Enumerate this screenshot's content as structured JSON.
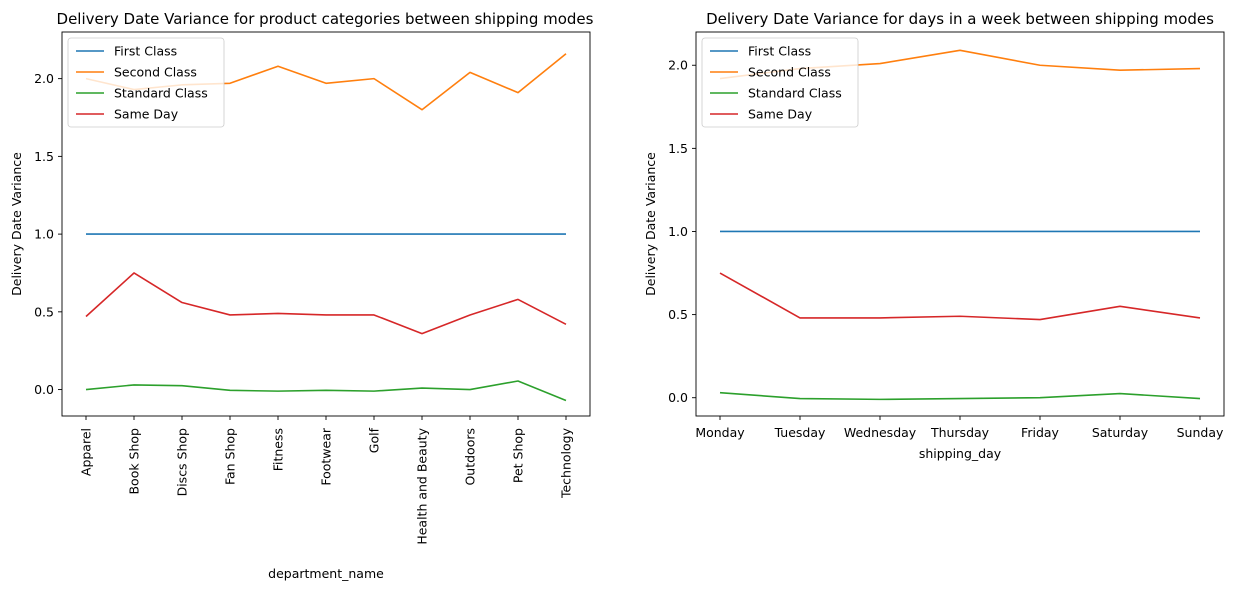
{
  "chart_data": [
    {
      "type": "line",
      "title": "Delivery Date Variance for product categories between shipping modes",
      "xlabel": "department_name",
      "ylabel": "Delivery Date Variance",
      "categories": [
        "Apparel",
        "Book Shop",
        "Discs Shop",
        "Fan Shop",
        "Fitness",
        "Footwear",
        "Golf",
        "Health and Beauty",
        "Outdoors",
        "Pet Shop",
        "Technology"
      ],
      "yticks": [
        "0.0",
        "0.5",
        "1.0",
        "1.5",
        "2.0"
      ],
      "ylim": [
        -0.17,
        2.3
      ],
      "grid": false,
      "legend_position": "upper-left",
      "series": [
        {
          "name": "First Class",
          "color": "#1f77b4",
          "values": [
            1.0,
            1.0,
            1.0,
            1.0,
            1.0,
            1.0,
            1.0,
            1.0,
            1.0,
            1.0,
            1.0
          ]
        },
        {
          "name": "Second Class",
          "color": "#ff7f0e",
          "values": [
            2.0,
            1.93,
            1.96,
            1.97,
            2.08,
            1.97,
            2.0,
            1.8,
            2.04,
            1.91,
            2.16
          ]
        },
        {
          "name": "Standard Class",
          "color": "#2ca02c",
          "values": [
            0.0,
            0.03,
            0.025,
            -0.005,
            -0.01,
            -0.005,
            -0.01,
            0.01,
            0.0,
            0.055,
            -0.07
          ]
        },
        {
          "name": "Same Day",
          "color": "#d62728",
          "values": [
            0.47,
            0.75,
            0.56,
            0.48,
            0.49,
            0.48,
            0.48,
            0.36,
            0.48,
            0.58,
            0.42
          ]
        }
      ]
    },
    {
      "type": "line",
      "title": "Delivery Date Variance for days in a week between shipping modes",
      "xlabel": "shipping_day",
      "ylabel": "Delivery Date Variance",
      "categories": [
        "Monday",
        "Tuesday",
        "Wednesday",
        "Thursday",
        "Friday",
        "Saturday",
        "Sunday"
      ],
      "yticks": [
        "0.0",
        "0.5",
        "1.0",
        "1.5",
        "2.0"
      ],
      "ylim": [
        -0.11,
        2.2
      ],
      "grid": false,
      "legend_position": "upper-left",
      "series": [
        {
          "name": "First Class",
          "color": "#1f77b4",
          "values": [
            1.0,
            1.0,
            1.0,
            1.0,
            1.0,
            1.0,
            1.0
          ]
        },
        {
          "name": "Second Class",
          "color": "#ff7f0e",
          "values": [
            1.92,
            1.98,
            2.01,
            2.09,
            2.0,
            1.97,
            1.98
          ]
        },
        {
          "name": "Standard Class",
          "color": "#2ca02c",
          "values": [
            0.03,
            -0.005,
            -0.01,
            -0.005,
            0.0,
            0.025,
            -0.005
          ]
        },
        {
          "name": "Same Day",
          "color": "#d62728",
          "values": [
            0.75,
            0.48,
            0.48,
            0.49,
            0.47,
            0.55,
            0.48
          ]
        }
      ]
    }
  ]
}
